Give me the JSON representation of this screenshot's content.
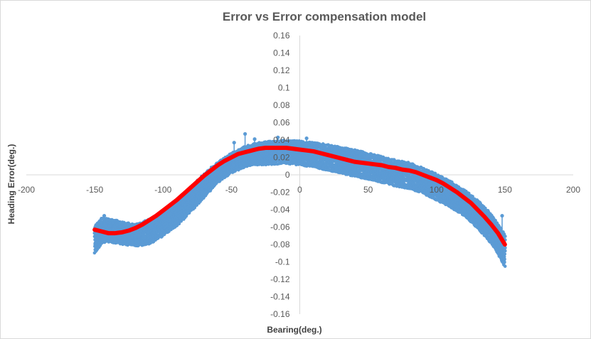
{
  "chart_data": {
    "type": "scatter",
    "title": "Error vs Error compensation model",
    "xlabel": "Bearing(deg.)",
    "ylabel": "Heading Error(deg.)",
    "xlim": [
      -200,
      200
    ],
    "ylim": [
      -0.16,
      0.16
    ],
    "x_ticks": [
      "-200",
      "-150",
      "-100",
      "-50",
      "0",
      "50",
      "100",
      "150",
      "200"
    ],
    "y_ticks": [
      "0.16",
      "0.14",
      "0.12",
      "0.1",
      "0.08",
      "0.06",
      "0.04",
      "0.02",
      "0",
      "-0.02",
      "-0.04",
      "-0.06",
      "-0.08",
      "-0.1",
      "-0.12",
      "-0.14",
      "-0.16"
    ],
    "grid": false,
    "legend": "none",
    "series": [
      {
        "kind": "measured",
        "color": "#5b9bd5",
        "band": [
          {
            "x": -150,
            "low": -0.09,
            "high": -0.06
          },
          {
            "x": -145,
            "low": -0.078,
            "high": -0.05
          },
          {
            "x": -140,
            "low": -0.076,
            "high": -0.051
          },
          {
            "x": -130,
            "low": -0.079,
            "high": -0.055
          },
          {
            "x": -120,
            "low": -0.081,
            "high": -0.058
          },
          {
            "x": -110,
            "low": -0.079,
            "high": -0.052
          },
          {
            "x": -100,
            "low": -0.069,
            "high": -0.043
          },
          {
            "x": -90,
            "low": -0.058,
            "high": -0.032
          },
          {
            "x": -80,
            "low": -0.042,
            "high": -0.016
          },
          {
            "x": -70,
            "low": -0.025,
            "high": 0.0
          },
          {
            "x": -60,
            "low": -0.008,
            "high": 0.014
          },
          {
            "x": -50,
            "low": 0.003,
            "high": 0.024
          },
          {
            "x": -40,
            "low": 0.01,
            "high": 0.032
          },
          {
            "x": -30,
            "low": 0.012,
            "high": 0.036
          },
          {
            "x": -20,
            "low": 0.013,
            "high": 0.038
          },
          {
            "x": -10,
            "low": 0.014,
            "high": 0.039
          },
          {
            "x": 0,
            "low": 0.012,
            "high": 0.038
          },
          {
            "x": 10,
            "low": 0.01,
            "high": 0.036
          },
          {
            "x": 20,
            "low": 0.006,
            "high": 0.034
          },
          {
            "x": 30,
            "low": 0.003,
            "high": 0.031
          },
          {
            "x": 40,
            "low": -0.001,
            "high": 0.028
          },
          {
            "x": 50,
            "low": -0.004,
            "high": 0.024
          },
          {
            "x": 60,
            "low": -0.008,
            "high": 0.02
          },
          {
            "x": 70,
            "low": -0.012,
            "high": 0.016
          },
          {
            "x": 80,
            "low": -0.015,
            "high": 0.013
          },
          {
            "x": 90,
            "low": -0.02,
            "high": 0.007
          },
          {
            "x": 100,
            "low": -0.028,
            "high": 0.0
          },
          {
            "x": 110,
            "low": -0.036,
            "high": -0.008
          },
          {
            "x": 120,
            "low": -0.046,
            "high": -0.018
          },
          {
            "x": 130,
            "low": -0.06,
            "high": -0.03
          },
          {
            "x": 140,
            "low": -0.078,
            "high": -0.046
          },
          {
            "x": 145,
            "low": -0.09,
            "high": -0.058
          },
          {
            "x": 150,
            "low": -0.105,
            "high": -0.07
          }
        ],
        "spikes": [
          {
            "x": -48,
            "y": 0.037
          },
          {
            "x": -40,
            "y": 0.047
          },
          {
            "x": -33,
            "y": 0.041
          },
          {
            "x": -16,
            "y": 0.043
          },
          {
            "x": 5,
            "y": 0.042
          },
          {
            "x": 135,
            "y": -0.045
          },
          {
            "x": 140,
            "y": -0.05
          },
          {
            "x": 148,
            "y": -0.047
          },
          {
            "x": -143,
            "y": -0.047
          }
        ]
      },
      {
        "kind": "model",
        "color": "#ff0000",
        "x": [
          -150,
          -145,
          -140,
          -135,
          -130,
          -125,
          -120,
          -115,
          -110,
          -105,
          -100,
          -95,
          -90,
          -85,
          -80,
          -75,
          -70,
          -65,
          -60,
          -55,
          -50,
          -45,
          -40,
          -35,
          -30,
          -25,
          -20,
          -15,
          -10,
          -5,
          0,
          5,
          10,
          15,
          20,
          25,
          30,
          35,
          40,
          45,
          50,
          55,
          60,
          65,
          70,
          75,
          80,
          85,
          90,
          95,
          100,
          105,
          110,
          115,
          120,
          125,
          130,
          135,
          140,
          145,
          150
        ],
        "y": [
          -0.063,
          -0.065,
          -0.067,
          -0.067,
          -0.066,
          -0.064,
          -0.061,
          -0.057,
          -0.052,
          -0.047,
          -0.041,
          -0.035,
          -0.029,
          -0.022,
          -0.015,
          -0.008,
          -0.001,
          0.005,
          0.011,
          0.016,
          0.02,
          0.024,
          0.026,
          0.028,
          0.03,
          0.031,
          0.031,
          0.031,
          0.031,
          0.03,
          0.029,
          0.028,
          0.027,
          0.025,
          0.023,
          0.021,
          0.019,
          0.017,
          0.015,
          0.014,
          0.013,
          0.012,
          0.011,
          0.009,
          0.008,
          0.006,
          0.005,
          0.003,
          0.0,
          -0.003,
          -0.006,
          -0.01,
          -0.015,
          -0.02,
          -0.026,
          -0.032,
          -0.04,
          -0.048,
          -0.057,
          -0.067,
          -0.08
        ]
      }
    ]
  }
}
